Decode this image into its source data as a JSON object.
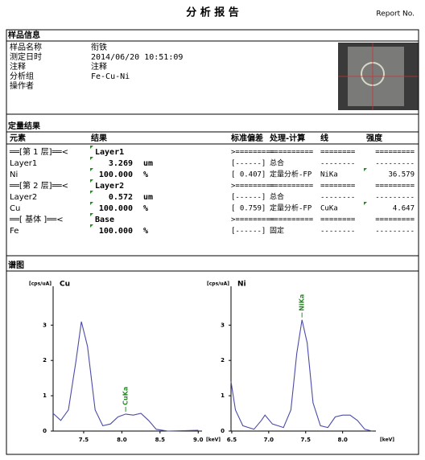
{
  "header": {
    "title": "分 析 报 告",
    "report_no": "Report No."
  },
  "sample_info": {
    "heading": "样品信息",
    "rows": [
      [
        "样品名称",
        "衔铁"
      ],
      [
        "测定日时",
        "2014/06/20 10:51:09"
      ],
      [
        "注释",
        "注释"
      ],
      [
        "分析组",
        "Fe-Cu-Ni"
      ],
      [
        "操作者"
      ]
    ]
  },
  "quant": {
    "heading": "定量结果",
    "columns": {
      "element": "元素",
      "result": "结果",
      "sd": "标准偏差",
      "calc": "处理-计算",
      "line": "线",
      "intensity": "强度"
    },
    "rows": [
      {
        "element": "══[第 1 层]══<",
        "result": "Layer1",
        "sd": ">=========",
        "calc": "==========",
        "line": "========",
        "intensity": "========="
      },
      {
        "element": "Layer1",
        "result": "3.269",
        "unit": "um",
        "sd": "[------]",
        "calc": "总合",
        "line": "--------",
        "intensity": "---------"
      },
      {
        "element": "Ni",
        "result": "100.000",
        "unit": "%",
        "sd": "[ 0.407]",
        "calc": "定量分析-FP",
        "line": "NiKa",
        "intensity": "36.579"
      },
      {
        "element": "══[第 2 层]══<",
        "result": "Layer2",
        "sd": ">=========",
        "calc": "==========",
        "line": "========",
        "intensity": "========="
      },
      {
        "element": "Layer2",
        "result": "0.572",
        "unit": "um",
        "sd": "[------]",
        "calc": "总合",
        "line": "--------",
        "intensity": "---------"
      },
      {
        "element": "Cu",
        "result": "100.000",
        "unit": "%",
        "sd": "[ 0.759]",
        "calc": "定量分析-FP",
        "line": "CuKa",
        "intensity": "4.647"
      },
      {
        "element": "══[ 基体 ]══<",
        "result": "Base",
        "sd": ">=========",
        "calc": "==========",
        "line": "========",
        "intensity": "========="
      },
      {
        "element": "Fe",
        "result": "100.000",
        "unit": "%",
        "sd": "[------]",
        "calc": "固定",
        "line": "--------",
        "intensity": "---------"
      }
    ]
  },
  "spectra": {
    "heading": "谱图",
    "charts": [
      {
        "type": "line",
        "title": "Cu",
        "y_label": "[cps/uA]",
        "x_label": "[keV]",
        "color": "#4b4ba8",
        "annotation": {
          "text": "CuKa",
          "x": 8.05
        },
        "x": [
          7.1,
          7.2,
          7.3,
          7.4,
          7.47,
          7.55,
          7.65,
          7.75,
          7.85,
          7.95,
          8.05,
          8.15,
          8.25,
          8.35,
          8.45,
          8.6,
          9.0
        ],
        "values": [
          0.5,
          0.3,
          0.6,
          2.0,
          3.1,
          2.4,
          0.6,
          0.15,
          0.2,
          0.4,
          0.48,
          0.45,
          0.5,
          0.3,
          0.05,
          0.0,
          0.02
        ],
        "xlim": [
          7.1,
          9.05
        ],
        "ylim": [
          0,
          4.1
        ],
        "xticks": [
          7.5,
          {
            "value": 8,
            "label": "8.0"
          },
          8.5,
          {
            "value": 9,
            "label": "9.0"
          }
        ],
        "yticks": [
          0,
          1,
          2,
          3
        ]
      },
      {
        "type": "line",
        "title": "Ni",
        "y_label": "[cps/uA]",
        "x_label": "[keV]",
        "color": "#4b4ba8",
        "annotation": {
          "text": "NiKa",
          "x": 7.45
        },
        "x": [
          6.49,
          6.55,
          6.65,
          6.8,
          6.9,
          6.95,
          7.05,
          7.2,
          7.3,
          7.38,
          7.45,
          7.52,
          7.6,
          7.7,
          7.8,
          7.9,
          8.0,
          8.1,
          8.2,
          8.3,
          8.4
        ],
        "values": [
          1.4,
          0.6,
          0.15,
          0.05,
          0.3,
          0.45,
          0.2,
          0.1,
          0.6,
          2.2,
          3.15,
          2.5,
          0.8,
          0.15,
          0.1,
          0.4,
          0.45,
          0.45,
          0.3,
          0.05,
          0.0
        ],
        "xlim": [
          6.49,
          8.45
        ],
        "ylim": [
          0,
          4.1
        ],
        "xticks": [
          6.5,
          {
            "value": 7,
            "label": "7.0"
          },
          7.5,
          {
            "value": 8,
            "label": "8.0"
          }
        ],
        "yticks": [
          0,
          1,
          2,
          3
        ]
      }
    ]
  }
}
